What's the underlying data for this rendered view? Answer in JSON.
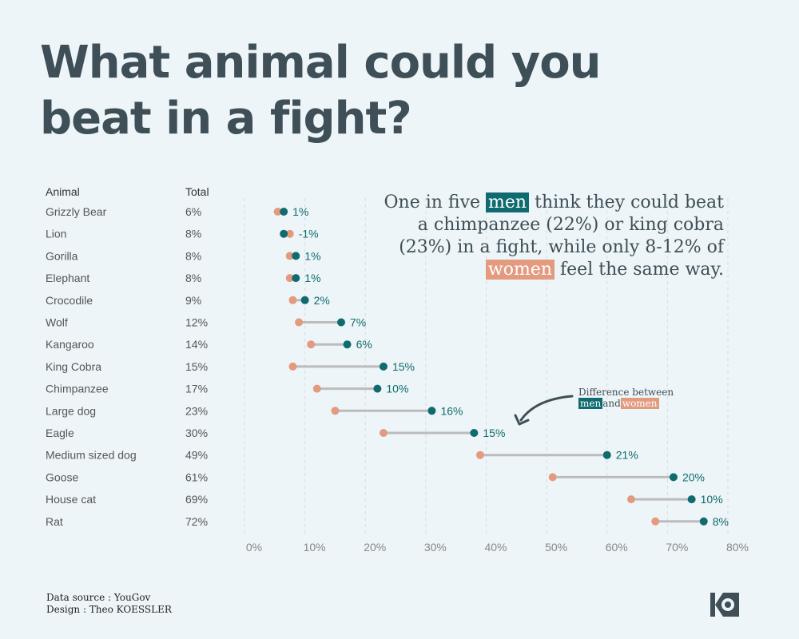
{
  "title": "What animal could you beat in a fight?",
  "columns": {
    "animal": "Animal",
    "total": "Total"
  },
  "annotation": {
    "part1": "One in five ",
    "men": "men",
    "part2": " think they could beat a chimpanzee (22%) or king cobra (23%) in a fight, while only 8-12% of ",
    "women": "women",
    "part3": " feel the same way."
  },
  "difference_note": {
    "line1": "Difference between",
    "men": "men",
    "and": "and",
    "women": "women"
  },
  "footer": {
    "source": "Data source : YouGov",
    "design": "Design : Theo KOESSLER"
  },
  "colors": {
    "men": "#0f6b6f",
    "women": "#e39a7f",
    "connector": "#bcbcbc",
    "text": "#3f4f57",
    "background": "#edf5f8"
  },
  "icons": {
    "logo": "ko-logo",
    "arrow": "curved-arrow-icon"
  },
  "chart_data": {
    "type": "dumbbell",
    "xlim": [
      0,
      80
    ],
    "x_ticks": [
      "0%",
      "10%",
      "20%",
      "30%",
      "40%",
      "50%",
      "60%",
      "70%",
      "80%"
    ],
    "grid": "vertical dashed",
    "rows": [
      {
        "animal": "Grizzly Bear",
        "total": "6%",
        "women": 5.5,
        "men": 6.5,
        "diff": "1%"
      },
      {
        "animal": "Lion",
        "total": "8%",
        "women": 7.5,
        "men": 6.5,
        "diff": "-1%"
      },
      {
        "animal": "Gorilla",
        "total": "8%",
        "women": 7.5,
        "men": 8.5,
        "diff": "1%"
      },
      {
        "animal": "Elephant",
        "total": "8%",
        "women": 7.5,
        "men": 8.5,
        "diff": "1%"
      },
      {
        "animal": "Crocodile",
        "total": "9%",
        "women": 8,
        "men": 10,
        "diff": "2%"
      },
      {
        "animal": "Wolf",
        "total": "12%",
        "women": 9,
        "men": 16,
        "diff": "7%"
      },
      {
        "animal": "Kangaroo",
        "total": "14%",
        "women": 11,
        "men": 17,
        "diff": "6%"
      },
      {
        "animal": "King Cobra",
        "total": "15%",
        "women": 8,
        "men": 23,
        "diff": "15%"
      },
      {
        "animal": "Chimpanzee",
        "total": "17%",
        "women": 12,
        "men": 22,
        "diff": "10%"
      },
      {
        "animal": "Large dog",
        "total": "23%",
        "women": 15,
        "men": 31,
        "diff": "16%"
      },
      {
        "animal": "Eagle",
        "total": "30%",
        "women": 23,
        "men": 38,
        "diff": "15%"
      },
      {
        "animal": "Medium sized dog",
        "total": "49%",
        "women": 39,
        "men": 60,
        "diff": "21%"
      },
      {
        "animal": "Goose",
        "total": "61%",
        "women": 51,
        "men": 71,
        "diff": "20%"
      },
      {
        "animal": "House cat",
        "total": "69%",
        "women": 64,
        "men": 74,
        "diff": "10%"
      },
      {
        "animal": "Rat",
        "total": "72%",
        "women": 68,
        "men": 76,
        "diff": "8%"
      }
    ]
  }
}
